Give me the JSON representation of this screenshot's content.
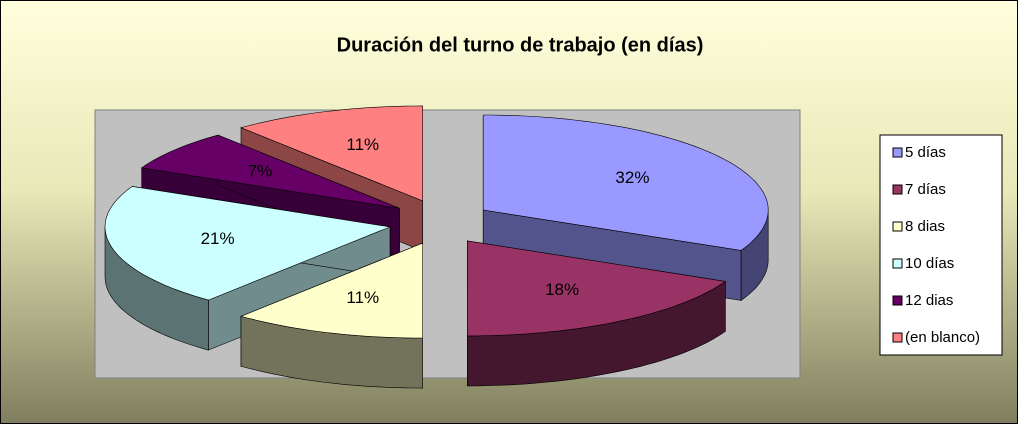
{
  "chart_data": {
    "type": "pie",
    "title": "Duración del turno de trabajo  (en días)",
    "categories": [
      "5 días",
      "7 días",
      "8 dias",
      "10 días",
      "12 dias",
      "(en blanco)"
    ],
    "values": [
      32,
      18,
      11,
      21,
      7,
      11
    ],
    "value_labels": [
      "32%",
      "18%",
      "11%",
      "21%",
      "7%",
      "11%"
    ],
    "colors": [
      "#9999ff",
      "#993366",
      "#ffffcc",
      "#ccffff",
      "#660066",
      "#ff8080"
    ],
    "legend": "right"
  }
}
